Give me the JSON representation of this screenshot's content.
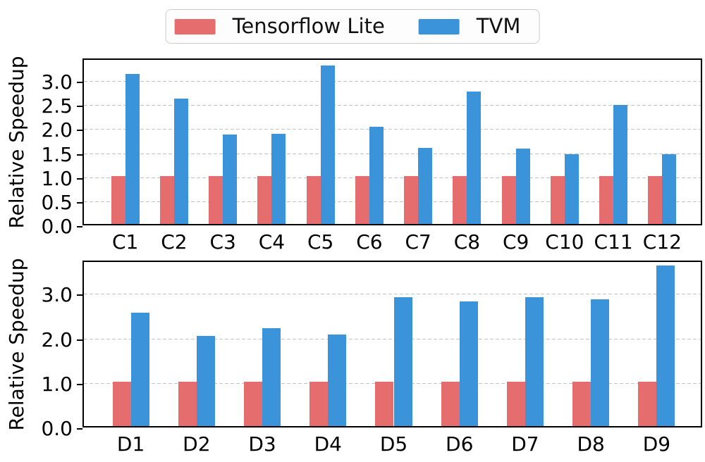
{
  "legend": {
    "items": [
      {
        "label": "Tensorflow Lite",
        "color": "#e56d6d"
      },
      {
        "label": "TVM",
        "color": "#3b94d9"
      }
    ]
  },
  "chart_data": [
    {
      "type": "bar",
      "title": "",
      "xlabel": "",
      "ylabel": "Relative Speedup",
      "categories": [
        "C1",
        "C2",
        "C3",
        "C4",
        "C5",
        "C6",
        "C7",
        "C8",
        "C9",
        "C10",
        "C11",
        "C12"
      ],
      "series": [
        {
          "name": "Tensorflow Lite",
          "color": "#e56d6d",
          "values": [
            1.0,
            1.0,
            1.0,
            1.0,
            1.0,
            1.0,
            1.0,
            1.0,
            1.0,
            1.0,
            1.0,
            1.0
          ]
        },
        {
          "name": "TVM",
          "color": "#3b94d9",
          "values": [
            3.12,
            2.6,
            1.86,
            1.87,
            3.3,
            2.02,
            1.58,
            2.75,
            1.57,
            1.45,
            2.48,
            1.45
          ]
        }
      ],
      "ylim": [
        0,
        3.47
      ],
      "yticks": [
        {
          "v": 0.0,
          "label": "0.0"
        },
        {
          "v": 0.5,
          "label": "0.5"
        },
        {
          "v": 1.0,
          "label": "1.0"
        },
        {
          "v": 1.5,
          "label": "1.5"
        },
        {
          "v": 2.0,
          "label": "2.0"
        },
        {
          "v": 2.5,
          "label": "2.5"
        },
        {
          "v": 3.0,
          "label": "3.0"
        }
      ],
      "grid": "horizontal-dashed",
      "legend_position": "above-figure"
    },
    {
      "type": "bar",
      "title": "",
      "xlabel": "",
      "ylabel": "Relative Speedup",
      "categories": [
        "D1",
        "D2",
        "D3",
        "D4",
        "D5",
        "D6",
        "D7",
        "D8",
        "D9"
      ],
      "series": [
        {
          "name": "Tensorflow Lite",
          "color": "#e56d6d",
          "values": [
            1.0,
            1.0,
            1.0,
            1.0,
            1.0,
            1.0,
            1.0,
            1.0,
            1.0
          ]
        },
        {
          "name": "TVM",
          "color": "#3b94d9",
          "values": [
            2.55,
            2.02,
            2.2,
            2.05,
            2.9,
            2.8,
            2.9,
            2.85,
            3.6
          ]
        }
      ],
      "ylim": [
        0,
        3.75
      ],
      "yticks": [
        {
          "v": 0.0,
          "label": "0.0"
        },
        {
          "v": 1.0,
          "label": "1.0"
        },
        {
          "v": 2.0,
          "label": "2.0"
        },
        {
          "v": 3.0,
          "label": "3.0"
        }
      ],
      "grid": "horizontal-dashed",
      "legend_position": "above-figure"
    }
  ]
}
